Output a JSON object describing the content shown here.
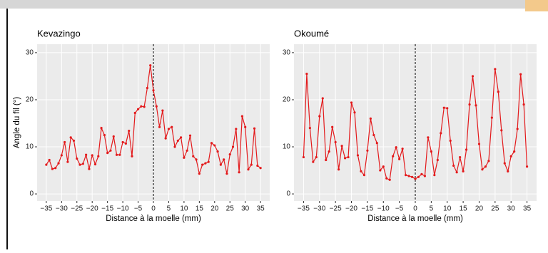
{
  "chart_data": [
    {
      "type": "line",
      "title": "Kevazingo",
      "xlabel": "Distance à la moelle (mm)",
      "ylabel": "Angle du fil (°)",
      "x": [
        -35,
        -34,
        -33,
        -32,
        -31,
        -30,
        -29,
        -28,
        -27,
        -26,
        -25,
        -24,
        -23,
        -22,
        -21,
        -20,
        -19,
        -18,
        -17,
        -16,
        -15,
        -14,
        -13,
        -12,
        -11,
        -10,
        -9,
        -8,
        -7,
        -6,
        -5,
        -4,
        -3,
        -2,
        -1,
        0,
        1,
        2,
        3,
        4,
        5,
        6,
        7,
        8,
        9,
        10,
        11,
        12,
        13,
        14,
        15,
        16,
        17,
        18,
        19,
        20,
        21,
        22,
        23,
        24,
        25,
        26,
        27,
        28,
        29,
        30,
        31,
        32,
        33,
        34,
        35
      ],
      "series": [
        {
          "name": null,
          "color": "#e31a1c",
          "values": [
            6.2,
            7.2,
            5.3,
            5.5,
            6.5,
            8.2,
            11,
            6.8,
            12,
            11.3,
            7.5,
            6.2,
            6.4,
            8.3,
            5.3,
            8.2,
            6.3,
            8,
            14,
            12.5,
            8.7,
            9.2,
            12.2,
            8.3,
            8.3,
            11,
            10.7,
            13.4,
            8,
            17.2,
            18,
            18.6,
            18.5,
            22.5,
            27.3,
            22,
            18.6,
            14.2,
            17.7,
            11.8,
            13.8,
            14.2,
            10,
            11.3,
            12,
            7.7,
            9.2,
            12.4,
            8,
            7.3,
            4.3,
            6.2,
            6.5,
            6.8,
            10.8,
            10.3,
            9,
            6.2,
            7.3,
            4.3,
            8.4,
            10,
            13.8,
            4.6,
            16.5,
            14.2,
            5.2,
            6.2,
            13.9,
            6,
            5.5
          ]
        }
      ],
      "xlim": [
        -38,
        38
      ],
      "ylim": [
        -1.5,
        31.8
      ],
      "xticks": [
        {
          "value": -35,
          "label": "−35"
        },
        {
          "value": -30,
          "label": "−30"
        },
        {
          "value": -25,
          "label": "−25"
        },
        {
          "value": -20,
          "label": "−20"
        },
        {
          "value": -15,
          "label": "−15"
        },
        {
          "value": -10,
          "label": "−10"
        },
        {
          "value": -5,
          "label": "−5"
        },
        0,
        5,
        10,
        15,
        20,
        25,
        30,
        35
      ],
      "yticks": [
        0,
        10,
        20,
        30
      ],
      "grid": true,
      "vline": 0
    },
    {
      "type": "line",
      "title": "Okoumé",
      "xlabel": "Distance à la moelle (mm)",
      "x": [
        -35,
        -34,
        -33,
        -32,
        -31,
        -30,
        -29,
        -28,
        -27,
        -26,
        -25,
        -24,
        -23,
        -22,
        -21,
        -20,
        -19,
        -18,
        -17,
        -16,
        -15,
        -14,
        -13,
        -12,
        -11,
        -10,
        -9,
        -8,
        -7,
        -6,
        -5,
        -4,
        -3,
        -2,
        -1,
        0,
        1,
        2,
        3,
        4,
        5,
        6,
        7,
        8,
        9,
        10,
        11,
        12,
        13,
        14,
        15,
        16,
        17,
        18,
        19,
        20,
        21,
        22,
        23,
        24,
        25,
        26,
        27,
        28,
        29,
        30,
        31,
        32,
        33,
        34,
        35
      ],
      "series": [
        {
          "name": null,
          "color": "#e31a1c",
          "values": [
            7.8,
            25.5,
            14,
            6.8,
            7.8,
            16.5,
            20.3,
            7.2,
            9,
            14.2,
            11,
            5.2,
            10.2,
            7.6,
            7.8,
            19.4,
            17.3,
            8.2,
            4.8,
            4,
            9.2,
            16,
            12.5,
            10.8,
            5,
            5.8,
            3.3,
            3,
            8,
            9.9,
            7.4,
            9.6,
            4,
            3.8,
            3.6,
            3.2,
            3.6,
            4.2,
            3.8,
            12,
            9,
            4,
            7.2,
            12.9,
            18.3,
            18.2,
            11.3,
            6,
            4.6,
            7.8,
            4.8,
            9.4,
            19,
            25,
            18.8,
            10.6,
            5.2,
            5.8,
            7,
            16.2,
            26.5,
            21.7,
            13.5,
            6.5,
            4.8,
            8,
            9,
            13.8,
            25.4,
            19,
            5.8
          ]
        }
      ],
      "xlim": [
        -38,
        38
      ],
      "ylim": [
        -1.5,
        31.8
      ],
      "xticks": [
        {
          "value": -35,
          "label": "−35"
        },
        {
          "value": -30,
          "label": "−30"
        },
        {
          "value": -25,
          "label": "−25"
        },
        {
          "value": -20,
          "label": "−20"
        },
        {
          "value": -15,
          "label": "−15"
        },
        {
          "value": -10,
          "label": "−10"
        },
        {
          "value": -5,
          "label": "−5"
        },
        0,
        5,
        10,
        15,
        20,
        25,
        30,
        35
      ],
      "yticks": [
        0,
        10,
        20,
        30
      ],
      "grid": true,
      "vline": 0
    }
  ]
}
